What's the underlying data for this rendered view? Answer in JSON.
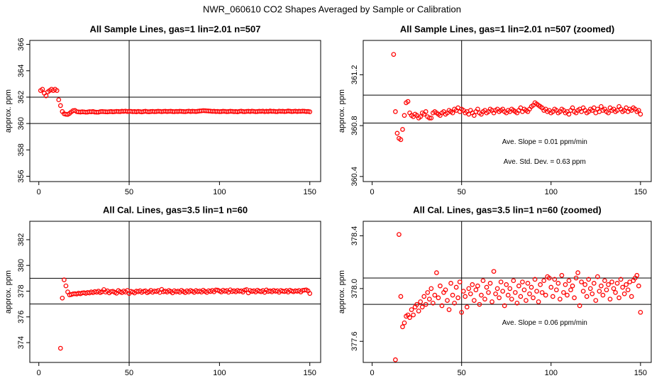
{
  "title": "NWR_060610  CO2 Shapes Averaged by Sample or Calibration",
  "chart_data": [
    {
      "type": "scatter",
      "title": "All Sample Lines, gas=1 lin=2.01 n=507",
      "ylabel": "approx. ppm",
      "color": "#ff0000",
      "xlim": [
        -5,
        156
      ],
      "ylim": [
        355.6,
        366.3
      ],
      "xticks": [
        0,
        50,
        100,
        150
      ],
      "yticks": [
        356,
        358,
        360,
        362,
        364,
        366
      ],
      "hlines": [
        362,
        360
      ],
      "vlines": [
        50
      ],
      "x": [
        1,
        2,
        3,
        4,
        5,
        6,
        7,
        8,
        9,
        10,
        11,
        12,
        13,
        14,
        15,
        16,
        17,
        18,
        19,
        20,
        21,
        22,
        23,
        24,
        25,
        26,
        27,
        28,
        29,
        30,
        31,
        32,
        33,
        34,
        35,
        36,
        37,
        38,
        39,
        40,
        41,
        42,
        43,
        44,
        45,
        46,
        47,
        48,
        49,
        50,
        51,
        52,
        53,
        54,
        55,
        56,
        57,
        58,
        59,
        60,
        61,
        62,
        63,
        64,
        65,
        66,
        67,
        68,
        69,
        70,
        71,
        72,
        73,
        74,
        75,
        76,
        77,
        78,
        79,
        80,
        81,
        82,
        83,
        84,
        85,
        86,
        87,
        88,
        89,
        90,
        91,
        92,
        93,
        94,
        95,
        96,
        97,
        98,
        99,
        100,
        101,
        102,
        103,
        104,
        105,
        106,
        107,
        108,
        109,
        110,
        111,
        112,
        113,
        114,
        115,
        116,
        117,
        118,
        119,
        120,
        121,
        122,
        123,
        124,
        125,
        126,
        127,
        128,
        129,
        130,
        131,
        132,
        133,
        134,
        135,
        136,
        137,
        138,
        139,
        140,
        141,
        142,
        143,
        144,
        145,
        146,
        147,
        148,
        149,
        150
      ],
      "values": [
        362.5,
        362.6,
        362.3,
        362.1,
        362.4,
        362.5,
        362.6,
        362.5,
        362.6,
        362.5,
        361.8,
        361.36,
        360.91,
        360.74,
        360.7,
        360.69,
        360.77,
        360.88,
        360.98,
        360.99,
        360.9,
        360.88,
        360.87,
        360.89,
        360.88,
        360.86,
        360.87,
        360.9,
        360.89,
        360.91,
        360.87,
        360.86,
        360.86,
        360.9,
        360.91,
        360.9,
        360.89,
        360.88,
        360.9,
        360.91,
        360.89,
        360.9,
        360.92,
        360.91,
        360.9,
        360.93,
        360.92,
        360.94,
        360.91,
        360.93,
        360.92,
        360.9,
        360.91,
        360.89,
        360.92,
        360.9,
        360.88,
        360.91,
        360.93,
        360.9,
        360.89,
        360.91,
        360.92,
        360.9,
        360.91,
        360.93,
        360.92,
        360.9,
        360.92,
        360.93,
        360.91,
        360.92,
        360.93,
        360.91,
        360.9,
        360.92,
        360.91,
        360.93,
        360.92,
        360.91,
        360.9,
        360.92,
        360.94,
        360.91,
        360.93,
        360.92,
        360.91,
        360.93,
        360.95,
        360.96,
        360.98,
        360.97,
        360.96,
        360.95,
        360.94,
        360.92,
        360.93,
        360.91,
        360.92,
        360.9,
        360.91,
        360.93,
        360.92,
        360.9,
        360.91,
        360.93,
        360.92,
        360.9,
        360.91,
        360.89,
        360.92,
        360.94,
        360.91,
        360.9,
        360.92,
        360.93,
        360.91,
        360.94,
        360.92,
        360.9,
        360.91,
        360.93,
        360.92,
        360.94,
        360.9,
        360.93,
        360.91,
        360.95,
        360.92,
        360.93,
        360.91,
        360.9,
        360.94,
        360.92,
        360.93,
        360.91,
        360.92,
        360.95,
        360.93,
        360.91,
        360.92,
        360.94,
        360.91,
        360.93,
        360.92,
        360.94,
        360.93,
        360.91,
        360.92,
        360.89
      ]
    },
    {
      "type": "scatter",
      "title": "All Sample Lines, gas=1 lin=2.01 n=507 (zoomed)",
      "ylabel": "approx. ppm",
      "color": "#ff0000",
      "xlim": [
        -5,
        156
      ],
      "ylim": [
        360.36,
        361.47
      ],
      "xticks": [
        0,
        50,
        100,
        150
      ],
      "yticks": [
        360.4,
        360.8,
        361.2
      ],
      "hlines": [
        361.04,
        360.82
      ],
      "vlines": [
        50
      ],
      "annotations": [
        "Ave. Slope =  0.01  ppm/min",
        "Ave. Std. Dev. =  0.63  ppm"
      ],
      "x": [
        12,
        13,
        14,
        15,
        16,
        17,
        18,
        19,
        20,
        21,
        22,
        23,
        24,
        25,
        26,
        27,
        28,
        29,
        30,
        31,
        32,
        33,
        34,
        35,
        36,
        37,
        38,
        39,
        40,
        41,
        42,
        43,
        44,
        45,
        46,
        47,
        48,
        49,
        50,
        51,
        52,
        53,
        54,
        55,
        56,
        57,
        58,
        59,
        60,
        61,
        62,
        63,
        64,
        65,
        66,
        67,
        68,
        69,
        70,
        71,
        72,
        73,
        74,
        75,
        76,
        77,
        78,
        79,
        80,
        81,
        82,
        83,
        84,
        85,
        86,
        87,
        88,
        89,
        90,
        91,
        92,
        93,
        94,
        95,
        96,
        97,
        98,
        99,
        100,
        101,
        102,
        103,
        104,
        105,
        106,
        107,
        108,
        109,
        110,
        111,
        112,
        113,
        114,
        115,
        116,
        117,
        118,
        119,
        120,
        121,
        122,
        123,
        124,
        125,
        126,
        127,
        128,
        129,
        130,
        131,
        132,
        133,
        134,
        135,
        136,
        137,
        138,
        139,
        140,
        141,
        142,
        143,
        144,
        145,
        146,
        147,
        148,
        149,
        150
      ],
      "values": [
        361.36,
        360.91,
        360.74,
        360.7,
        360.69,
        360.77,
        360.88,
        360.98,
        360.99,
        360.9,
        360.88,
        360.87,
        360.89,
        360.88,
        360.86,
        360.87,
        360.9,
        360.89,
        360.91,
        360.87,
        360.86,
        360.86,
        360.9,
        360.91,
        360.9,
        360.89,
        360.88,
        360.9,
        360.91,
        360.89,
        360.9,
        360.92,
        360.91,
        360.9,
        360.93,
        360.92,
        360.94,
        360.91,
        360.93,
        360.92,
        360.9,
        360.91,
        360.89,
        360.92,
        360.9,
        360.88,
        360.91,
        360.93,
        360.9,
        360.89,
        360.91,
        360.92,
        360.9,
        360.91,
        360.93,
        360.92,
        360.9,
        360.92,
        360.93,
        360.91,
        360.92,
        360.93,
        360.91,
        360.9,
        360.92,
        360.91,
        360.93,
        360.92,
        360.91,
        360.9,
        360.92,
        360.94,
        360.91,
        360.93,
        360.92,
        360.91,
        360.93,
        360.95,
        360.96,
        360.98,
        360.97,
        360.96,
        360.95,
        360.94,
        360.92,
        360.93,
        360.91,
        360.92,
        360.9,
        360.91,
        360.93,
        360.92,
        360.9,
        360.91,
        360.93,
        360.92,
        360.9,
        360.91,
        360.89,
        360.92,
        360.94,
        360.91,
        360.9,
        360.92,
        360.93,
        360.91,
        360.94,
        360.92,
        360.9,
        360.91,
        360.93,
        360.92,
        360.94,
        360.9,
        360.93,
        360.91,
        360.95,
        360.92,
        360.93,
        360.91,
        360.9,
        360.94,
        360.92,
        360.93,
        360.91,
        360.92,
        360.95,
        360.93,
        360.91,
        360.92,
        360.94,
        360.91,
        360.93,
        360.92,
        360.94,
        360.93,
        360.91,
        360.92,
        360.89
      ]
    },
    {
      "type": "scatter",
      "title": "All Cal. Lines, gas=3.5 lin=1 n=60",
      "ylabel": "approx. ppm",
      "color": "#ff0000",
      "xlim": [
        -5,
        156
      ],
      "ylim": [
        372.46,
        383.43
      ],
      "xticks": [
        0,
        50,
        100,
        150
      ],
      "yticks": [
        374,
        376,
        378,
        380,
        382
      ],
      "hlines": [
        379,
        377
      ],
      "vlines": [
        50
      ],
      "x": [
        12,
        13,
        14,
        15,
        16,
        17,
        18,
        19,
        20,
        21,
        22,
        23,
        24,
        25,
        26,
        27,
        28,
        29,
        30,
        31,
        32,
        33,
        34,
        35,
        36,
        37,
        38,
        39,
        40,
        41,
        42,
        43,
        44,
        45,
        46,
        47,
        48,
        49,
        50,
        51,
        52,
        53,
        54,
        55,
        56,
        57,
        58,
        59,
        60,
        61,
        62,
        63,
        64,
        65,
        66,
        67,
        68,
        69,
        70,
        71,
        72,
        73,
        74,
        75,
        76,
        77,
        78,
        79,
        80,
        81,
        82,
        83,
        84,
        85,
        86,
        87,
        88,
        89,
        90,
        91,
        92,
        93,
        94,
        95,
        96,
        97,
        98,
        99,
        100,
        101,
        102,
        103,
        104,
        105,
        106,
        107,
        108,
        109,
        110,
        111,
        112,
        113,
        114,
        115,
        116,
        117,
        118,
        119,
        120,
        121,
        122,
        123,
        124,
        125,
        126,
        127,
        128,
        129,
        130,
        131,
        132,
        133,
        134,
        135,
        136,
        137,
        138,
        139,
        140,
        141,
        142,
        143,
        144,
        145,
        146,
        147,
        148,
        149,
        150
      ],
      "values": [
        373.56,
        377.46,
        378.88,
        378.41,
        377.94,
        377.71,
        377.74,
        377.79,
        377.8,
        377.78,
        377.84,
        377.8,
        377.86,
        377.88,
        377.83,
        377.9,
        377.86,
        377.94,
        377.88,
        377.97,
        377.92,
        378.0,
        377.89,
        377.95,
        378.12,
        377.93,
        378.02,
        377.87,
        377.97,
        377.99,
        377.91,
        377.84,
        378.04,
        377.95,
        377.89,
        378.01,
        377.93,
        378.05,
        377.82,
        377.98,
        377.94,
        377.86,
        378.0,
        377.96,
        378.03,
        377.91,
        377.99,
        378.02,
        377.88,
        377.95,
        378.06,
        377.92,
        378.01,
        377.97,
        378.04,
        377.9,
        378.13,
        377.96,
        378.0,
        377.93,
        378.05,
        377.98,
        377.87,
        378.03,
        377.95,
        378.0,
        377.92,
        378.06,
        377.97,
        377.89,
        378.02,
        377.94,
        378.05,
        377.99,
        377.91,
        378.04,
        377.96,
        378.01,
        377.93,
        378.07,
        377.98,
        377.9,
        378.03,
        377.97,
        378.06,
        377.95,
        378.09,
        378.08,
        378.01,
        377.94,
        378.07,
        377.99,
        378.04,
        377.92,
        378.1,
        377.97,
        378.03,
        377.95,
        378.06,
        377.99,
        378.02,
        377.93,
        378.08,
        378.12,
        377.87,
        378.05,
        377.98,
        378.03,
        377.94,
        378.07,
        378.0,
        377.96,
        378.04,
        377.91,
        378.09,
        377.98,
        378.02,
        377.95,
        378.06,
        377.99,
        378.03,
        377.92,
        378.05,
        378.0,
        377.97,
        378.04,
        377.93,
        378.07,
        378.01,
        377.96,
        378.03,
        377.99,
        378.05,
        377.94,
        378.06,
        378.08,
        378.1,
        378.02,
        377.82
      ]
    },
    {
      "type": "scatter",
      "title": "All Cal. Lines, gas=3.5 lin=1 n=60 (zoomed)",
      "ylabel": "approx. ppm",
      "color": "#ff0000",
      "xlim": [
        -5,
        156
      ],
      "ylim": [
        377.44,
        378.51
      ],
      "xticks": [
        0,
        50,
        100,
        150
      ],
      "yticks": [
        377.6,
        {
          "value": 378,
          "label": "378.0"
        },
        378.4
      ],
      "hlines": [
        378.08,
        377.88
      ],
      "vlines": [
        50
      ],
      "annotations": [
        "Ave. Slope =  0.06  ppm/min"
      ],
      "x": [
        13,
        15,
        16,
        17,
        18,
        19,
        20,
        21,
        22,
        23,
        24,
        25,
        26,
        27,
        28,
        29,
        30,
        31,
        32,
        33,
        34,
        35,
        36,
        37,
        38,
        39,
        40,
        41,
        42,
        43,
        44,
        45,
        46,
        47,
        48,
        49,
        50,
        51,
        52,
        53,
        54,
        55,
        56,
        57,
        58,
        59,
        60,
        61,
        62,
        63,
        64,
        65,
        66,
        67,
        68,
        69,
        70,
        71,
        72,
        73,
        74,
        75,
        76,
        77,
        78,
        79,
        80,
        81,
        82,
        83,
        84,
        85,
        86,
        87,
        88,
        89,
        90,
        91,
        92,
        93,
        94,
        95,
        96,
        97,
        98,
        99,
        100,
        101,
        102,
        103,
        104,
        105,
        106,
        107,
        108,
        109,
        110,
        111,
        112,
        113,
        114,
        115,
        116,
        117,
        118,
        119,
        120,
        121,
        122,
        123,
        124,
        125,
        126,
        127,
        128,
        129,
        130,
        131,
        132,
        133,
        134,
        135,
        136,
        137,
        138,
        139,
        140,
        141,
        142,
        143,
        144,
        145,
        146,
        147,
        148,
        149,
        150
      ],
      "values": [
        377.46,
        378.41,
        377.94,
        377.71,
        377.74,
        377.79,
        377.8,
        377.78,
        377.84,
        377.8,
        377.86,
        377.88,
        377.83,
        377.9,
        377.86,
        377.94,
        377.88,
        377.97,
        377.92,
        378.0,
        377.89,
        377.95,
        378.12,
        377.93,
        378.02,
        377.87,
        377.97,
        377.99,
        377.91,
        377.84,
        378.04,
        377.95,
        377.89,
        378.01,
        377.93,
        378.05,
        377.82,
        377.98,
        377.94,
        377.86,
        378.0,
        377.96,
        378.03,
        377.91,
        377.99,
        378.02,
        377.88,
        377.95,
        378.06,
        377.92,
        378.01,
        377.97,
        378.04,
        377.9,
        378.13,
        377.96,
        378.0,
        377.93,
        378.05,
        377.98,
        377.87,
        378.03,
        377.95,
        378.0,
        377.92,
        378.06,
        377.97,
        377.89,
        378.02,
        377.94,
        378.05,
        377.99,
        377.91,
        378.04,
        377.96,
        378.01,
        377.93,
        378.07,
        377.98,
        377.9,
        378.03,
        377.97,
        378.06,
        377.95,
        378.09,
        378.08,
        378.01,
        377.94,
        378.07,
        377.99,
        378.04,
        377.92,
        378.1,
        377.97,
        378.03,
        377.95,
        378.06,
        377.99,
        378.02,
        377.93,
        378.08,
        378.12,
        377.87,
        378.05,
        377.98,
        378.03,
        377.94,
        378.07,
        378.0,
        377.96,
        378.04,
        377.91,
        378.09,
        377.98,
        378.02,
        377.95,
        378.06,
        377.99,
        378.03,
        377.92,
        378.05,
        378.0,
        377.97,
        378.04,
        377.93,
        378.07,
        378.01,
        377.96,
        378.03,
        377.99,
        378.05,
        377.94,
        378.06,
        378.08,
        378.1,
        378.02,
        377.82
      ]
    }
  ]
}
